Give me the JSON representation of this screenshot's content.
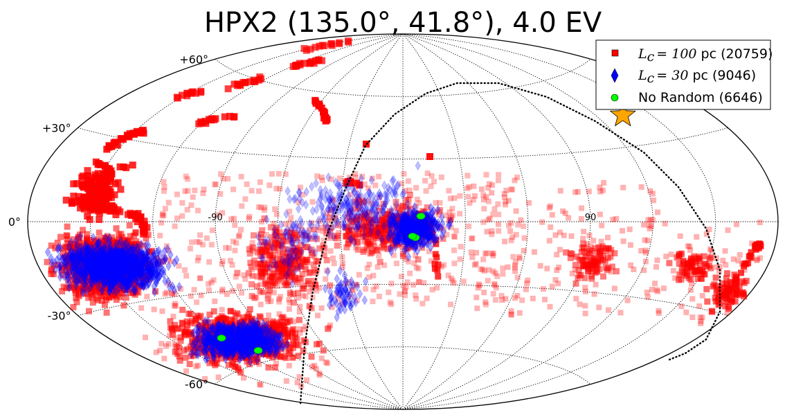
{
  "chart_data": {
    "type": "scatter",
    "projection": "aitoff",
    "title": "HPX2 (135.0°, 41.8°), 4.0 EV",
    "source_marker": {
      "name": "source",
      "lon_deg": 135.0,
      "lat_deg": 41.8,
      "color": "#ffa500"
    },
    "lat_ticks": [
      {
        "label": "+60°",
        "lat": 60
      },
      {
        "label": "+30°",
        "lat": 30
      },
      {
        "label": "0°",
        "lat": 0
      },
      {
        "label": "-30°",
        "lat": -30
      },
      {
        "label": "-60°",
        "lat": -60
      }
    ],
    "lon_ticks": [
      {
        "label": "90",
        "lon": 90
      },
      {
        "label": "-90",
        "lon": -90
      }
    ],
    "grid": true,
    "legend_position": "top-right",
    "series": [
      {
        "name": "Lc=100 pc",
        "legend_math": "L",
        "legend_sub": "c",
        "legend_eq": "= 100",
        "legend_rest": " pc (20759)",
        "count": 20759,
        "marker": "square",
        "color": "#ff0000"
      },
      {
        "name": "Lc=30 pc",
        "legend_math": "L",
        "legend_sub": "c",
        "legend_eq": "= 30",
        "legend_rest": " pc (9046)",
        "count": 9046,
        "marker": "diamond",
        "color": "#0000ff"
      },
      {
        "name": "No Random",
        "legend_plain": "No Random (6646)",
        "count": 6646,
        "marker": "circle",
        "color": "#00ff00"
      }
    ]
  }
}
